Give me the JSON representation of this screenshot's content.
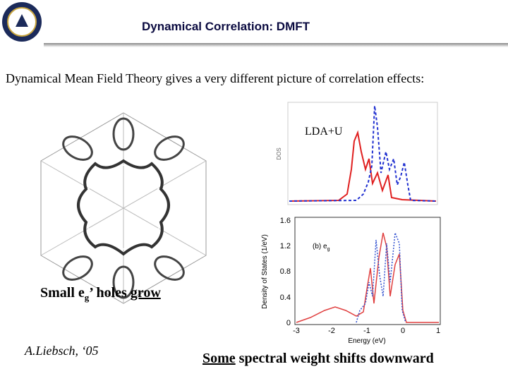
{
  "header": {
    "title": "Dynamical Correlation: DMFT"
  },
  "intro": "Dynamical Mean Field Theory gives a very different picture of correlation effects:",
  "upper_plot": {
    "label": "LDA+U",
    "ylabel": "DOS"
  },
  "lower_plot": {
    "panel": "(b) e",
    "panel_sub": "g",
    "ylabel": "Density of States  (1/eV)",
    "xlabel": "Energy (eV)",
    "yticks": [
      0,
      0.4,
      0.8,
      1.2,
      1.6
    ],
    "xticks": [
      -3,
      -2,
      -1,
      0,
      1
    ]
  },
  "caption": {
    "part1": "Small e",
    "sub": "g",
    "part2": "’ holes ",
    "underlined": "grow"
  },
  "credit": "A.Liebsch, ‘05",
  "conclusion": {
    "underlined": "Some",
    "rest": " spectral weight shifts downward"
  }
}
